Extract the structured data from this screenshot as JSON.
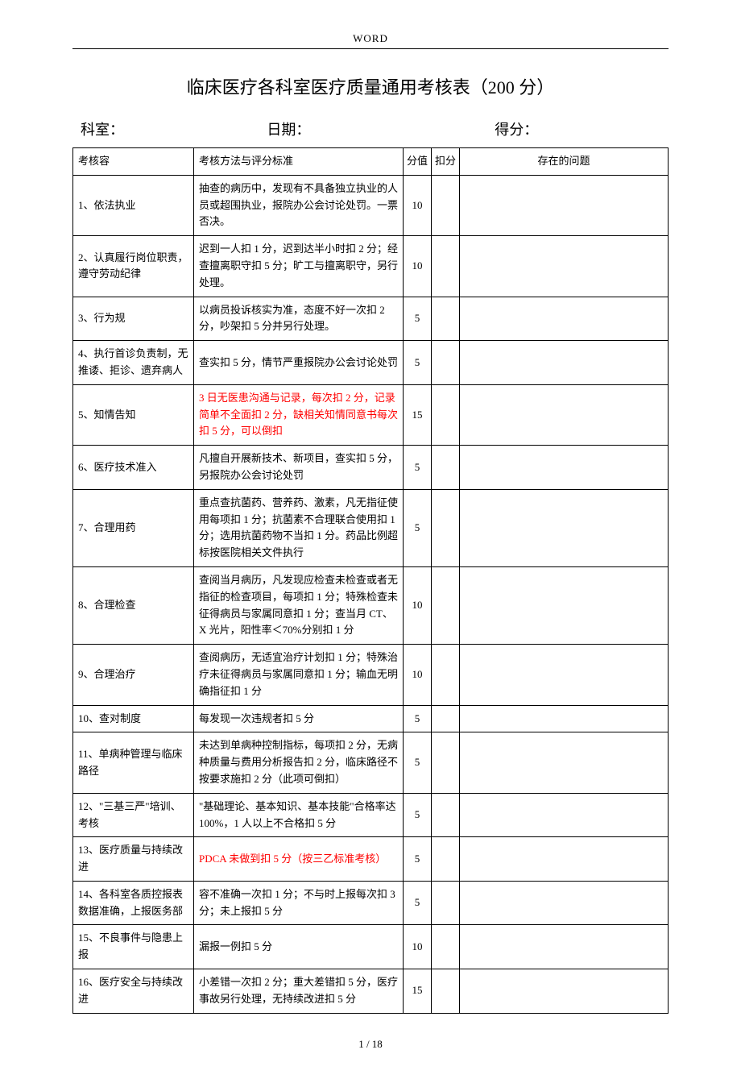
{
  "header_label": "WORD",
  "title": "临床医疗各科室医疗质量通用考核表（200 分）",
  "info": {
    "dept_label": "科室：",
    "date_label": "日期：",
    "score_label": "得分："
  },
  "table": {
    "headers": {
      "item": "考核容",
      "standard": "考核方法与评分标准",
      "score": "分值",
      "deduct": "扣分",
      "issue": "存在的问题"
    },
    "rows": [
      {
        "item": "1、依法执业",
        "standard": "抽查的病历中，发现有不具备独立执业的人员或超围执业，报院办公会讨论处罚。一票否决。",
        "score": "10",
        "red": false
      },
      {
        "item": "2、认真履行岗位职责，遵守劳动纪律",
        "standard": "迟到一人扣 1 分，迟到达半小时扣 2 分；经查擅离职守扣 5 分；旷工与擅离职守，另行处理。",
        "score": "10",
        "red": false
      },
      {
        "item": "3、行为规",
        "standard": "以病员投诉核实为准，态度不好一次扣 2 分，吵架扣 5 分并另行处理。",
        "score": "5",
        "red": false
      },
      {
        "item": "4、执行首诊负责制，无推诿、拒诊、遗弃病人",
        "standard": "查实扣 5 分，情节严重报院办公会讨论处罚",
        "score": "5",
        "red": false
      },
      {
        "item": "5、知情告知",
        "standard": "3 日无医患沟通与记录，每次扣 2 分，记录简单不全面扣 2 分，缺相关知情同意书每次扣 5 分，可以倒扣",
        "score": "15",
        "red": true
      },
      {
        "item": "6、医疗技术准入",
        "standard": "凡擅自开展新技术、新项目，查实扣 5 分，另报院办公会讨论处罚",
        "score": "5",
        "red": false
      },
      {
        "item": "7、合理用药",
        "standard": "重点查抗菌药、营养药、激素，凡无指征使用每项扣 1 分；抗菌素不合理联合使用扣 1 分；选用抗菌药物不当扣 1 分。药品比例超标按医院相关文件执行",
        "score": "5",
        "red": false
      },
      {
        "item": "8、合理检查",
        "standard": "查阅当月病历，凡发现应检查未检查或者无指征的检查项目，每项扣 1 分；特殊检查未征得病员与家属同意扣 1 分；查当月 CT、X 光片，阳性率＜70%分别扣 1 分",
        "score": "10",
        "red": false
      },
      {
        "item": "9、合理治疗",
        "standard": "查阅病历，无适宜治疗计划扣 1 分；特殊治疗未征得病员与家属同意扣 1 分；输血无明确指征扣 1 分",
        "score": "10",
        "red": false
      },
      {
        "item": "10、查对制度",
        "standard": "每发现一次违规者扣 5 分",
        "score": "5",
        "red": false
      },
      {
        "item": "11、单病种管理与临床路径",
        "standard": "未达到单病种控制指标，每项扣 2 分，无病种质量与费用分析报告扣 2 分，临床路径不按要求施扣 2 分（此项可倒扣）",
        "score": "5",
        "red": false
      },
      {
        "item": "12、\"三基三严\"培训、考核",
        "standard": "\"基础理论、基本知识、基本技能\"合格率达 100%，1 人以上不合格扣 5 分",
        "score": "5",
        "red": false
      },
      {
        "item": "13、医疗质量与持续改进",
        "standard": "PDCA 未做到扣 5 分（按三乙标准考核）",
        "score": "5",
        "red": true
      },
      {
        "item": "14、各科室各质控报表数据准确，上报医务部",
        "standard": "容不准确一次扣 1 分；不与时上报每次扣 3 分；未上报扣 5 分",
        "score": "5",
        "red": false
      },
      {
        "item": "15、不良事件与隐患上报",
        "standard": "漏报一例扣 5 分",
        "score": "10",
        "red": false
      },
      {
        "item": "16、医疗安全与持续改进",
        "standard": "小差错一次扣 2 分；重大差错扣 5 分，医疗事故另行处理，无持续改进扣 5 分",
        "score": "15",
        "red": false
      }
    ]
  },
  "footer": "1 / 18"
}
